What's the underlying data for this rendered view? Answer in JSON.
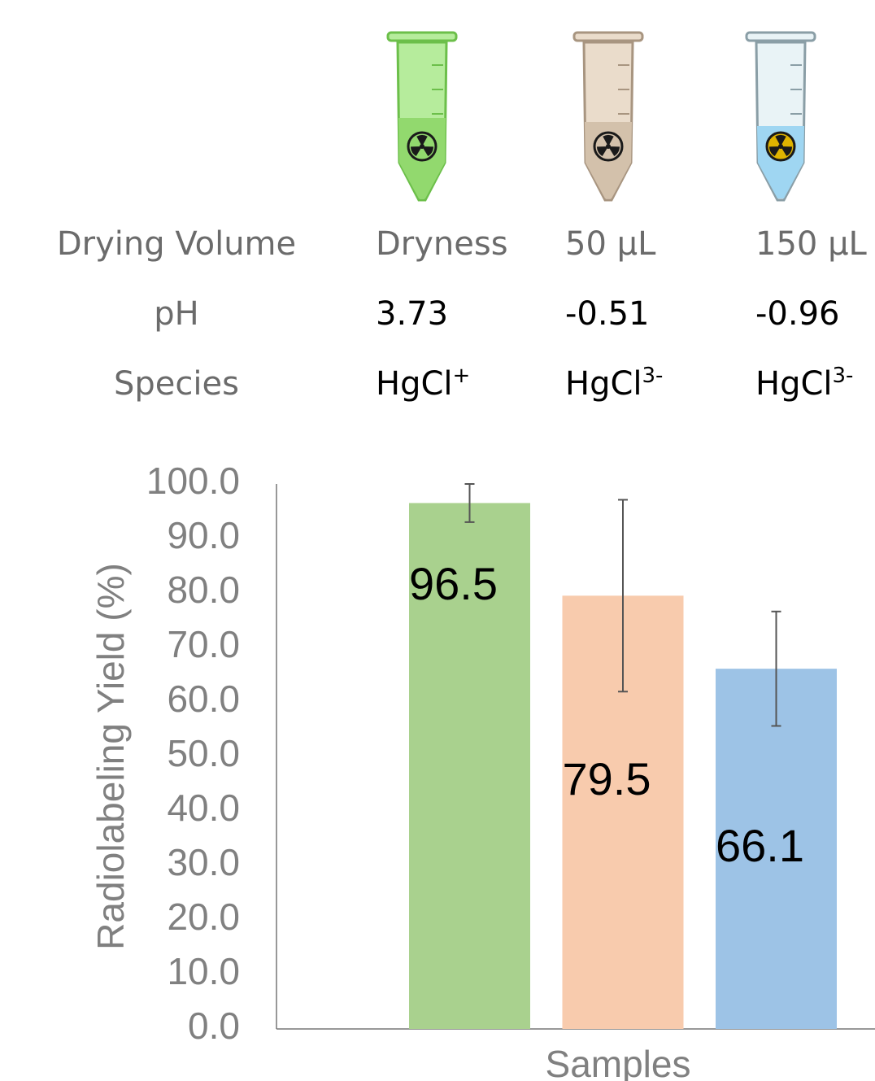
{
  "table": {
    "rows": [
      [
        "Drying Volume",
        "Dryness",
        "50 µL",
        "150 µL"
      ],
      [
        "pH",
        "3.73",
        "-0.51",
        "-0.96"
      ],
      [
        "Species",
        {
          "text": "HgCl",
          "sup": "+"
        },
        {
          "text": "HgCl",
          "sup": "3-"
        },
        {
          "text": "HgCl",
          "sup": "3-"
        }
      ]
    ]
  },
  "chart_data": {
    "type": "bar",
    "y_label": "Radiolabeling Yield (%)",
    "x_label": "Samples",
    "values": [
      96.5,
      79.5,
      66.1
    ],
    "errors": [
      3.5,
      17.6,
      10.5
    ],
    "colors": [
      "#a9d18e",
      "#f8cbad",
      "#9dc3e6"
    ],
    "ylim": [
      0,
      100
    ],
    "yticks": [
      {
        "value": 0,
        "label": "0.0"
      },
      {
        "value": 10,
        "label": "10.0"
      },
      {
        "value": 20,
        "label": "20.0"
      },
      {
        "value": 30,
        "label": "30.0"
      },
      {
        "value": 40,
        "label": "40.0"
      },
      {
        "value": 50,
        "label": "50.0"
      },
      {
        "value": 60,
        "label": "60.0"
      },
      {
        "value": 70,
        "label": "70.0"
      },
      {
        "value": 80,
        "label": "80.0"
      },
      {
        "value": 90,
        "label": "90.0"
      },
      {
        "value": 100,
        "label": "100.0"
      }
    ],
    "grid": false
  }
}
